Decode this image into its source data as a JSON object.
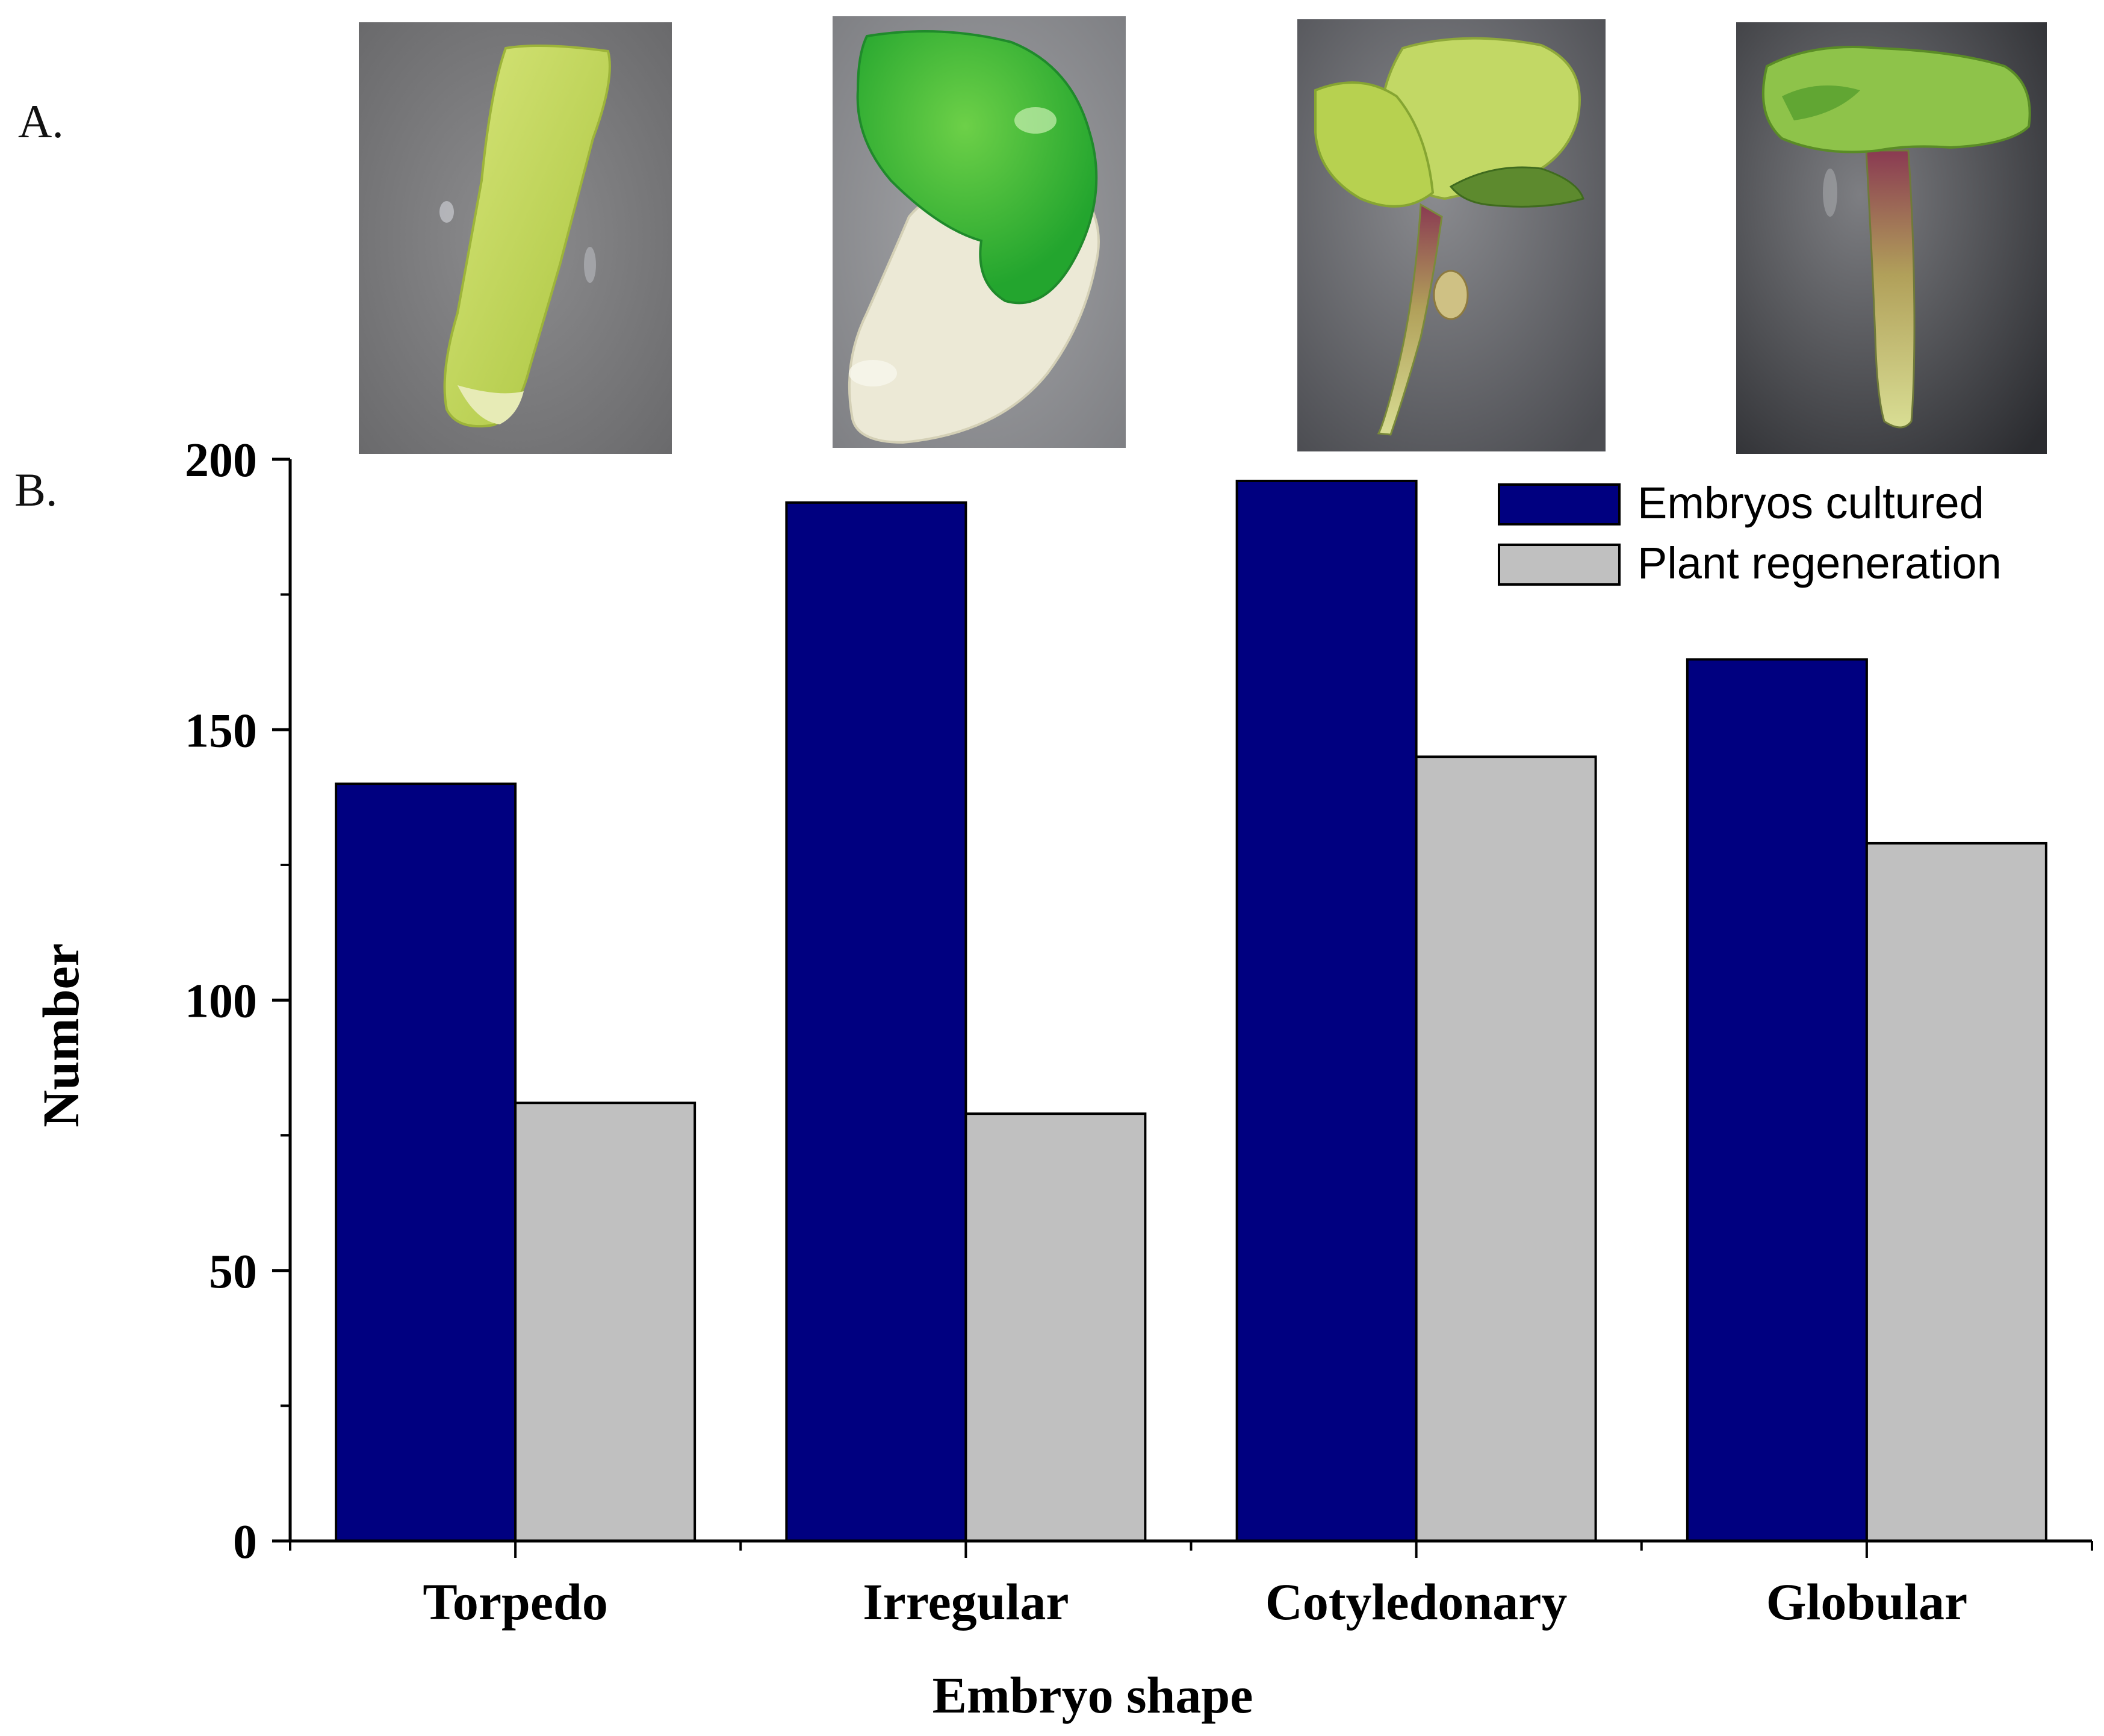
{
  "panel_labels": {
    "a": "A.",
    "b": "B."
  },
  "photos": [
    {
      "depicts": "torpedo-embryo"
    },
    {
      "depicts": "irregular-embryo"
    },
    {
      "depicts": "cotyledonary-embryo"
    },
    {
      "depicts": "globular-embryo"
    }
  ],
  "chart_data": {
    "type": "bar",
    "title": "",
    "xlabel": "Embryo shape",
    "ylabel": "Number",
    "categories": [
      "Torpedo",
      "Irregular",
      "Cotyledonary",
      "Globular"
    ],
    "series": [
      {
        "name": "Embryos cultured",
        "color": "#000080",
        "values": [
          140,
          192,
          196,
          163
        ]
      },
      {
        "name": "Plant regeneration",
        "color": "#c0c0c0",
        "values": [
          81,
          79,
          145,
          129
        ]
      }
    ],
    "ylim": [
      0,
      200
    ],
    "yticks": [
      0,
      50,
      100,
      150,
      200
    ],
    "yticks_minor": [
      25,
      75,
      125,
      175
    ],
    "grid": false,
    "legend_position": "top-right"
  }
}
